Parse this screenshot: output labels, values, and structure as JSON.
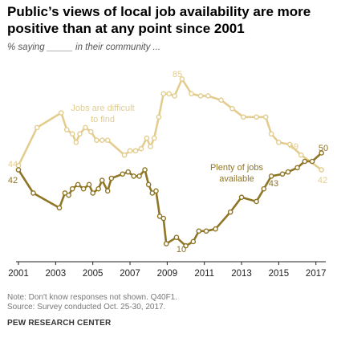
{
  "header": {
    "title": "Public’s views of local job availability are more positive than at any point since 2001",
    "subtitle": "% saying _____ in their community ..."
  },
  "footer": {
    "note": "Note: Don't know responses not shown. Q40F1.",
    "source": "Source: Survey conducted Oct. 25-30, 2017.",
    "brand": "PEW RESEARCH CENTER"
  },
  "colors": {
    "difficult": "#e3cd8e",
    "plenty": "#8f7526",
    "axis": "#222222",
    "tick_text": "#222222"
  },
  "chart_data": {
    "type": "line",
    "x_ticks": [
      2001,
      2003,
      2005,
      2007,
      2009,
      2011,
      2013,
      2015,
      2017
    ],
    "xlim": [
      2001,
      2017.4
    ],
    "ylim": [
      0,
      92
    ],
    "grid": false,
    "legend": "inline labels",
    "series": [
      {
        "name": "Jobs are difficult to find",
        "label_lines": [
          "Jobs are difficult",
          "to find"
        ],
        "color": "#e3cd8e",
        "points": [
          [
            2001.0,
            44
          ],
          [
            2002.0,
            62
          ],
          [
            2003.3,
            69
          ],
          [
            2003.6,
            61
          ],
          [
            2003.9,
            59
          ],
          [
            2004.1,
            55
          ],
          [
            2004.3,
            59
          ],
          [
            2004.6,
            62
          ],
          [
            2004.9,
            60
          ],
          [
            2005.2,
            56
          ],
          [
            2005.5,
            56
          ],
          [
            2005.8,
            56
          ],
          [
            2006.7,
            49
          ],
          [
            2007.0,
            51
          ],
          [
            2007.3,
            51
          ],
          [
            2007.6,
            52
          ],
          [
            2007.9,
            57
          ],
          [
            2008.1,
            53
          ],
          [
            2008.3,
            57
          ],
          [
            2008.55,
            67
          ],
          [
            2008.8,
            78
          ],
          [
            2009.1,
            78
          ],
          [
            2009.4,
            77
          ],
          [
            2009.8,
            85
          ],
          [
            2010.3,
            78
          ],
          [
            2010.8,
            77
          ],
          [
            2011.2,
            77
          ],
          [
            2011.9,
            75
          ],
          [
            2012.5,
            71
          ],
          [
            2013.1,
            67
          ],
          [
            2013.8,
            67
          ],
          [
            2014.3,
            67
          ],
          [
            2014.6,
            59
          ],
          [
            2015.0,
            55
          ],
          [
            2015.6,
            54
          ],
          [
            2016.2,
            49
          ],
          [
            2017.3,
            42
          ]
        ],
        "labeled_values": [
          44,
          85,
          49,
          42
        ]
      },
      {
        "name": "Plenty of jobs available",
        "label_lines": [
          "Plenty of jobs",
          "available"
        ],
        "color": "#8f7526",
        "points": [
          [
            2001.0,
            42
          ],
          [
            2001.8,
            31
          ],
          [
            2003.2,
            24
          ],
          [
            2003.5,
            31
          ],
          [
            2003.7,
            30
          ],
          [
            2003.9,
            33
          ],
          [
            2004.2,
            35
          ],
          [
            2004.5,
            33
          ],
          [
            2004.8,
            35
          ],
          [
            2005.0,
            31
          ],
          [
            2005.3,
            33
          ],
          [
            2005.5,
            37
          ],
          [
            2005.8,
            32
          ],
          [
            2006.0,
            38
          ],
          [
            2006.6,
            40
          ],
          [
            2006.9,
            41
          ],
          [
            2007.2,
            39
          ],
          [
            2007.5,
            39
          ],
          [
            2007.8,
            42
          ],
          [
            2008.0,
            35
          ],
          [
            2008.2,
            31
          ],
          [
            2008.4,
            32
          ],
          [
            2008.6,
            20
          ],
          [
            2008.8,
            19
          ],
          [
            2008.95,
            7
          ],
          [
            2009.5,
            10
          ],
          [
            2010.0,
            6
          ],
          [
            2010.4,
            8
          ],
          [
            2010.7,
            13
          ],
          [
            2011.1,
            13
          ],
          [
            2011.6,
            14
          ],
          [
            2012.4,
            22
          ],
          [
            2013.0,
            29
          ],
          [
            2013.8,
            27
          ],
          [
            2014.2,
            33
          ],
          [
            2014.6,
            39
          ],
          [
            2015.2,
            40
          ],
          [
            2015.5,
            41
          ],
          [
            2016.0,
            43
          ],
          [
            2016.4,
            46
          ],
          [
            2016.8,
            46
          ],
          [
            2017.3,
            50
          ]
        ],
        "labeled_values": [
          42,
          10,
          43,
          50
        ]
      }
    ]
  }
}
